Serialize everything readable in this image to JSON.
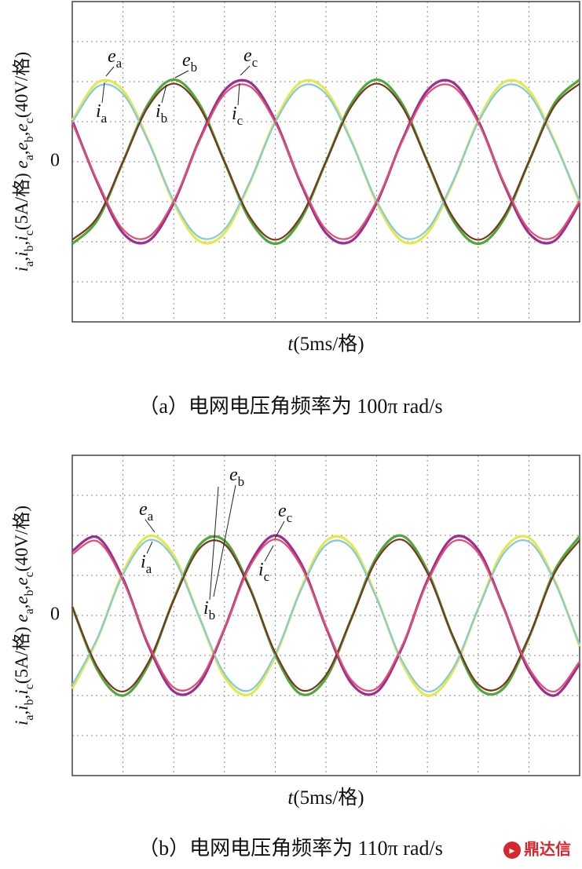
{
  "chart_data": [
    {
      "type": "line",
      "xlim": [
        0,
        10
      ],
      "ylim": [
        -4,
        4
      ],
      "yticks": [
        0
      ],
      "grid": true,
      "x": [
        0,
        0.5,
        1,
        1.5,
        2,
        2.5,
        3,
        3.5,
        4,
        4.5,
        5,
        5.5,
        6,
        6.5,
        7,
        7.5,
        8,
        8.5,
        9,
        9.5,
        10
      ],
      "series": [
        {
          "name": "e",
          "sub": "a",
          "color": "#e3e84e",
          "values": [
            1.03,
            1.98,
            1.78,
            0.53,
            -1.03,
            -1.98,
            -1.78,
            -0.53,
            1.03,
            1.98,
            1.78,
            0.53,
            -1.03,
            -1.98,
            -1.78,
            -0.53,
            1.03,
            1.98,
            1.78,
            0.53,
            -1.03
          ]
        },
        {
          "name": "e",
          "sub": "b",
          "color": "#4fa83a",
          "values": [
            -2.05,
            -1.45,
            0,
            1.45,
            2.05,
            1.45,
            0,
            -1.45,
            -2.05,
            -1.45,
            0,
            1.45,
            2.05,
            1.45,
            0,
            -1.45,
            -2.05,
            -1.45,
            0,
            1.45,
            2.05
          ]
        },
        {
          "name": "e",
          "sub": "c",
          "color": "#9b2f8f",
          "values": [
            1.03,
            -0.53,
            -1.78,
            -1.98,
            -1.03,
            0.53,
            1.78,
            1.98,
            1.03,
            -0.53,
            -1.78,
            -1.98,
            -1.03,
            0.53,
            1.78,
            1.98,
            1.03,
            -0.53,
            -1.78,
            -1.98,
            -1.03
          ]
        },
        {
          "name": "i",
          "sub": "a",
          "color": "#86c9da",
          "values": [
            0.98,
            1.88,
            1.69,
            0.5,
            -0.98,
            -1.88,
            -1.69,
            -0.5,
            0.98,
            1.88,
            1.69,
            0.5,
            -0.98,
            -1.88,
            -1.69,
            -0.5,
            0.98,
            1.88,
            1.69,
            0.5,
            -0.98
          ]
        },
        {
          "name": "i",
          "sub": "b",
          "color": "#7a3520",
          "values": [
            -1.95,
            -1.38,
            0,
            1.38,
            1.95,
            1.38,
            0,
            -1.38,
            -1.95,
            -1.38,
            0,
            1.38,
            1.95,
            1.38,
            0,
            -1.38,
            -1.95,
            -1.38,
            0,
            1.38,
            1.95
          ]
        },
        {
          "name": "i",
          "sub": "c",
          "color": "#e0506e",
          "values": [
            0.98,
            -0.5,
            -1.69,
            -1.88,
            -0.98,
            0.5,
            1.69,
            1.88,
            0.98,
            -0.5,
            -1.69,
            -1.88,
            -0.98,
            0.5,
            1.69,
            1.88,
            0.98,
            -0.5,
            -1.69,
            -1.88,
            -0.98
          ]
        }
      ],
      "ylabel": [
        [
          "i",
          "i"
        ],
        [
          "a",
          "s"
        ],
        [
          ",",
          "n"
        ],
        [
          "i",
          "i"
        ],
        [
          "b",
          "s"
        ],
        [
          ",",
          "n"
        ],
        [
          "i",
          "i"
        ],
        [
          "c",
          "s"
        ],
        [
          "(5A/格)  ",
          "n"
        ],
        [
          "e",
          "i"
        ],
        [
          "a",
          "s"
        ],
        [
          ",",
          "n"
        ],
        [
          "e",
          "i"
        ],
        [
          "b",
          "s"
        ],
        [
          ",",
          "n"
        ],
        [
          "e",
          "i"
        ],
        [
          "c",
          "s"
        ],
        [
          "(40V/格)",
          "n"
        ]
      ],
      "xlabel": [
        [
          "t",
          "i"
        ],
        [
          "(5ms/格)",
          "n"
        ]
      ],
      "caption": "（a）电网电压角频率为 100π rad/s"
    },
    {
      "type": "line",
      "xlim": [
        0,
        10
      ],
      "ylim": [
        -4,
        4
      ],
      "yticks": [
        0
      ],
      "grid": true,
      "x": [
        0,
        0.5,
        1,
        1.5,
        2,
        2.5,
        3,
        3.5,
        4,
        4.5,
        5,
        5.5,
        6,
        6.5,
        7,
        7.5,
        8,
        8.5,
        9,
        9.5,
        10
      ],
      "series": [
        {
          "name": "e",
          "sub": "a",
          "color": "#e3e84e",
          "values": [
            -1.83,
            -0.58,
            1.08,
            1.98,
            1.5,
            -0.03,
            -1.54,
            -1.97,
            -1.02,
            0.64,
            1.86,
            1.77,
            0.45,
            -1.19,
            -2.0,
            -1.4,
            0.17,
            1.63,
            1.94,
            0.9,
            -0.77
          ]
        },
        {
          "name": "e",
          "sub": "b",
          "color": "#4fa83a",
          "values": [
            0.22,
            -1.37,
            -2.0,
            -1.23,
            0.4,
            1.75,
            1.87,
            0.69,
            -0.98,
            -1.96,
            -1.57,
            -0.08,
            1.46,
            1.99,
            1.12,
            -0.53,
            -1.81,
            -1.82,
            -0.56,
            1.1,
            1.98
          ]
        },
        {
          "name": "e",
          "sub": "c",
          "color": "#9b2f8f",
          "values": [
            1.61,
            1.95,
            0.92,
            -0.75,
            -1.9,
            -1.72,
            -0.33,
            1.28,
            2.0,
            1.32,
            -0.29,
            -1.69,
            -1.91,
            -0.8,
            0.88,
            1.94,
            1.64,
            0.2,
            -1.38,
            -2.0,
            -1.21
          ]
        },
        {
          "name": "i",
          "sub": "a",
          "color": "#86c9da",
          "values": [
            -1.74,
            -0.55,
            1.02,
            1.88,
            1.42,
            -0.03,
            -1.46,
            -1.87,
            -0.97,
            0.61,
            1.76,
            1.68,
            0.42,
            -1.13,
            -1.9,
            -1.33,
            0.16,
            1.54,
            1.84,
            0.86,
            -0.73
          ]
        },
        {
          "name": "i",
          "sub": "b",
          "color": "#7a3520",
          "values": [
            0.21,
            -1.3,
            -1.9,
            -1.17,
            0.38,
            1.66,
            1.78,
            0.66,
            -0.93,
            -1.86,
            -1.49,
            -0.08,
            1.39,
            1.89,
            1.06,
            -0.51,
            -1.72,
            -1.73,
            -0.53,
            1.04,
            1.88
          ]
        },
        {
          "name": "i",
          "sub": "c",
          "color": "#e0506e",
          "values": [
            1.53,
            1.85,
            0.87,
            -0.71,
            -1.8,
            -1.63,
            -0.32,
            1.22,
            1.9,
            1.25,
            -0.27,
            -1.61,
            -1.82,
            -0.76,
            0.83,
            1.84,
            1.56,
            0.19,
            -1.31,
            -1.9,
            -1.15
          ]
        }
      ],
      "ylabel": [
        [
          "i",
          "i"
        ],
        [
          "a",
          "s"
        ],
        [
          ",",
          "n"
        ],
        [
          "i",
          "i"
        ],
        [
          "b",
          "s"
        ],
        [
          ",",
          "n"
        ],
        [
          "i",
          "i"
        ],
        [
          "c",
          "s"
        ],
        [
          "(5A/格)  ",
          "n"
        ],
        [
          "e",
          "i"
        ],
        [
          "a",
          "s"
        ],
        [
          ",",
          "n"
        ],
        [
          "e",
          "i"
        ],
        [
          "b",
          "s"
        ],
        [
          ",",
          "n"
        ],
        [
          "e",
          "i"
        ],
        [
          "c",
          "s"
        ],
        [
          "(40V/格)",
          "n"
        ]
      ],
      "xlabel": [
        [
          "t",
          "i"
        ],
        [
          "(5ms/格)",
          "n"
        ]
      ],
      "caption": "（b）电网电压角频率为 110π rad/s"
    }
  ],
  "watermark": "鼎达信"
}
